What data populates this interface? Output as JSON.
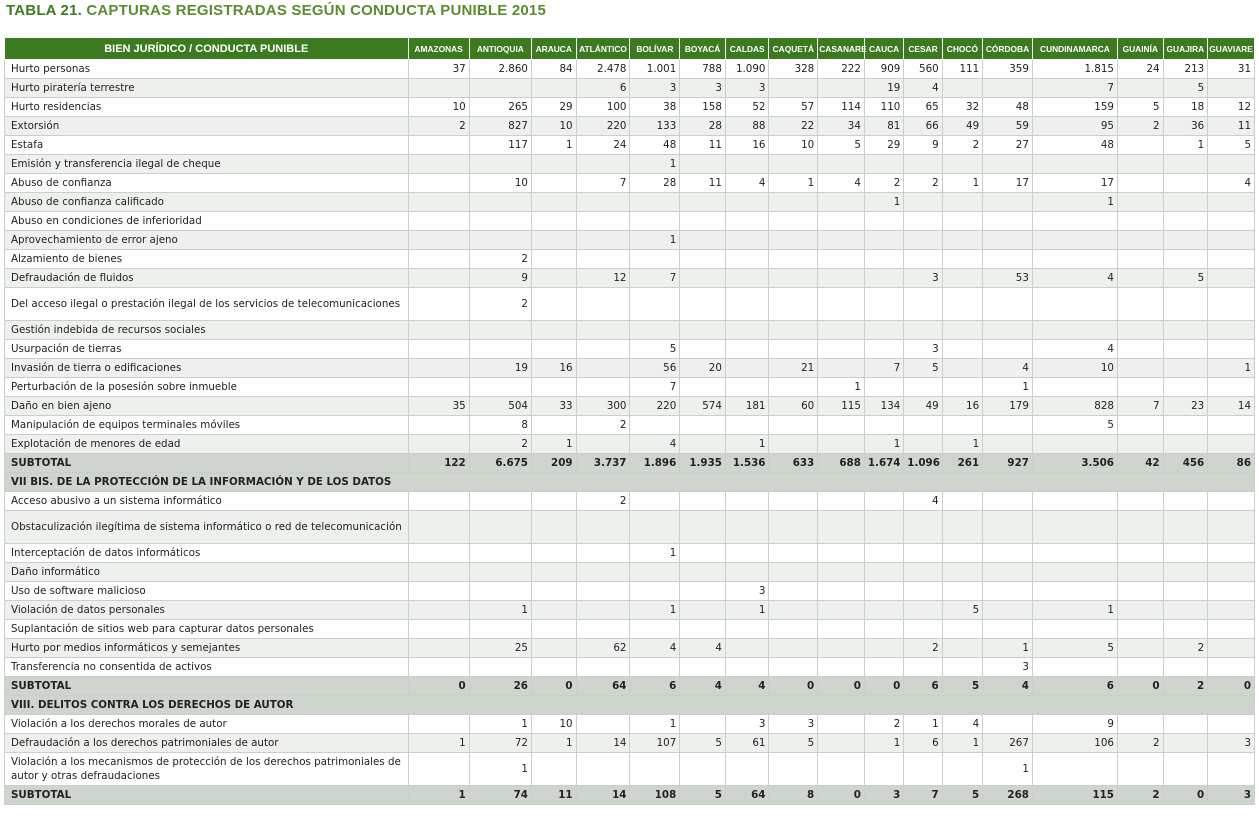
{
  "title": {
    "label": "TABLA 21.",
    "text": "CAPTURAS REGISTRADAS SEGÚN CONDUCTA PUNIBLE 2015"
  },
  "columns": [
    "BIEN JURÍDICO / CONDUCTA PUNIBLE",
    "AMAZONAS",
    "ANTIOQUIA",
    "ARAUCA",
    "ATLÁNTICO",
    "BOLÍVAR",
    "BOYACÁ",
    "CALDAS",
    "CAQUETÁ",
    "CASANARE",
    "CAUCA",
    "CESAR",
    "CHOCÓ",
    "CÓRDOBA",
    "CUNDINAMARCA",
    "GUAINÍA",
    "GUAJIRA",
    "GUAVIARE"
  ],
  "rows": [
    {
      "kind": "row",
      "label": "Hurto personas",
      "v": [
        "37",
        "2.860",
        "84",
        "2.478",
        "1.001",
        "788",
        "1.090",
        "328",
        "222",
        "909",
        "560",
        "111",
        "359",
        "1.815",
        "24",
        "213",
        "31"
      ]
    },
    {
      "kind": "row",
      "label": "Hurto piratería terrestre",
      "v": [
        "",
        "",
        "",
        "6",
        "3",
        "3",
        "3",
        "",
        "",
        "19",
        "4",
        "",
        "",
        "7",
        "",
        "5",
        ""
      ]
    },
    {
      "kind": "row",
      "label": "Hurto residencias",
      "v": [
        "10",
        "265",
        "29",
        "100",
        "38",
        "158",
        "52",
        "57",
        "114",
        "110",
        "65",
        "32",
        "48",
        "159",
        "5",
        "18",
        "12"
      ]
    },
    {
      "kind": "row",
      "label": "Extorsión",
      "v": [
        "2",
        "827",
        "10",
        "220",
        "133",
        "28",
        "88",
        "22",
        "34",
        "81",
        "66",
        "49",
        "59",
        "95",
        "2",
        "36",
        "11"
      ]
    },
    {
      "kind": "row",
      "label": "Estafa",
      "v": [
        "",
        "117",
        "1",
        "24",
        "48",
        "11",
        "16",
        "10",
        "5",
        "29",
        "9",
        "2",
        "27",
        "48",
        "",
        "1",
        "5"
      ]
    },
    {
      "kind": "row",
      "label": "Emisión y transferencia ilegal de cheque",
      "v": [
        "",
        "",
        "",
        "",
        "1",
        "",
        "",
        "",
        "",
        "",
        "",
        "",
        "",
        "",
        "",
        "",
        ""
      ]
    },
    {
      "kind": "row",
      "label": "Abuso de confianza",
      "v": [
        "",
        "10",
        "",
        "7",
        "28",
        "11",
        "4",
        "1",
        "4",
        "2",
        "2",
        "1",
        "17",
        "17",
        "",
        "",
        "4"
      ]
    },
    {
      "kind": "row",
      "label": "Abuso de confianza calificado",
      "v": [
        "",
        "",
        "",
        "",
        "",
        "",
        "",
        "",
        "",
        "1",
        "",
        "",
        "",
        "1",
        "",
        "",
        ""
      ]
    },
    {
      "kind": "row",
      "label": "Abuso en condiciones de inferioridad",
      "v": [
        "",
        "",
        "",
        "",
        "",
        "",
        "",
        "",
        "",
        "",
        "",
        "",
        "",
        "",
        "",
        "",
        ""
      ]
    },
    {
      "kind": "row",
      "label": "Aprovechamiento de error ajeno",
      "v": [
        "",
        "",
        "",
        "",
        "1",
        "",
        "",
        "",
        "",
        "",
        "",
        "",
        "",
        "",
        "",
        "",
        ""
      ]
    },
    {
      "kind": "row",
      "label": "Alzamiento de bienes",
      "v": [
        "",
        "2",
        "",
        "",
        "",
        "",
        "",
        "",
        "",
        "",
        "",
        "",
        "",
        "",
        "",
        "",
        ""
      ]
    },
    {
      "kind": "row",
      "label": "Defraudación de fluidos",
      "v": [
        "",
        "9",
        "",
        "12",
        "7",
        "",
        "",
        "",
        "",
        "",
        "3",
        "",
        "53",
        "4",
        "",
        "5",
        ""
      ]
    },
    {
      "kind": "row2",
      "label": "Del acceso ilegal o prestación ilegal de los servicios de telecomunicaciones",
      "v": [
        "",
        "2",
        "",
        "",
        "",
        "",
        "",
        "",
        "",
        "",
        "",
        "",
        "",
        "",
        "",
        "",
        ""
      ]
    },
    {
      "kind": "row",
      "label": "Gestión indebida de recursos sociales",
      "v": [
        "",
        "",
        "",
        "",
        "",
        "",
        "",
        "",
        "",
        "",
        "",
        "",
        "",
        "",
        "",
        "",
        ""
      ]
    },
    {
      "kind": "row",
      "label": "Usurpación de tierras",
      "v": [
        "",
        "",
        "",
        "",
        "5",
        "",
        "",
        "",
        "",
        "",
        "3",
        "",
        "",
        "4",
        "",
        "",
        ""
      ]
    },
    {
      "kind": "row",
      "label": "Invasión de tierra o edificaciones",
      "v": [
        "",
        "19",
        "16",
        "",
        "56",
        "20",
        "",
        "21",
        "",
        "7",
        "5",
        "",
        "4",
        "10",
        "",
        "",
        "1"
      ]
    },
    {
      "kind": "row",
      "label": "Perturbación de la posesión sobre inmueble",
      "v": [
        "",
        "",
        "",
        "",
        "7",
        "",
        "",
        "",
        "1",
        "",
        "",
        "",
        "1",
        "",
        "",
        "",
        ""
      ]
    },
    {
      "kind": "row",
      "label": "Daño en bien ajeno",
      "v": [
        "35",
        "504",
        "33",
        "300",
        "220",
        "574",
        "181",
        "60",
        "115",
        "134",
        "49",
        "16",
        "179",
        "828",
        "7",
        "23",
        "14"
      ]
    },
    {
      "kind": "row",
      "label": "Manipulación de equipos terminales móviles",
      "v": [
        "",
        "8",
        "",
        "2",
        "",
        "",
        "",
        "",
        "",
        "",
        "",
        "",
        "",
        "5",
        "",
        "",
        ""
      ]
    },
    {
      "kind": "row",
      "label": "Explotación de menores de edad",
      "v": [
        "",
        "2",
        "1",
        "",
        "4",
        "",
        "1",
        "",
        "",
        "1",
        "",
        "1",
        "",
        "",
        "",
        "",
        ""
      ]
    },
    {
      "kind": "sub",
      "label": "SUBTOTAL",
      "v": [
        "122",
        "6.675",
        "209",
        "3.737",
        "1.896",
        "1.935",
        "1.536",
        "633",
        "688",
        "1.674",
        "1.096",
        "261",
        "927",
        "3.506",
        "42",
        "456",
        "86"
      ]
    },
    {
      "kind": "sec",
      "label": "VII BIS. DE LA PROTECCIÓN DE LA INFORMACIÓN Y DE LOS DATOS"
    },
    {
      "kind": "row",
      "label": "Acceso abusivo a un sistema informático",
      "v": [
        "",
        "",
        "",
        "2",
        "",
        "",
        "",
        "",
        "",
        "",
        "4",
        "",
        "",
        "",
        "",
        "",
        ""
      ]
    },
    {
      "kind": "row2",
      "label": "Obstaculización ilegítima de sistema informático o red de telecomunicación",
      "v": [
        "",
        "",
        "",
        "",
        "",
        "",
        "",
        "",
        "",
        "",
        "",
        "",
        "",
        "",
        "",
        "",
        ""
      ]
    },
    {
      "kind": "row",
      "label": "Interceptación de datos informáticos",
      "v": [
        "",
        "",
        "",
        "",
        "1",
        "",
        "",
        "",
        "",
        "",
        "",
        "",
        "",
        "",
        "",
        "",
        ""
      ]
    },
    {
      "kind": "row",
      "label": "Daño informático",
      "v": [
        "",
        "",
        "",
        "",
        "",
        "",
        "",
        "",
        "",
        "",
        "",
        "",
        "",
        "",
        "",
        "",
        ""
      ]
    },
    {
      "kind": "row",
      "label": "Uso de software malicioso",
      "v": [
        "",
        "",
        "",
        "",
        "",
        "",
        "3",
        "",
        "",
        "",
        "",
        "",
        "",
        "",
        "",
        "",
        ""
      ]
    },
    {
      "kind": "row",
      "label": "Violación de datos personales",
      "v": [
        "",
        "1",
        "",
        "",
        "1",
        "",
        "1",
        "",
        "",
        "",
        "",
        "5",
        "",
        "1",
        "",
        "",
        ""
      ]
    },
    {
      "kind": "row",
      "label": "Suplantación de sitios web para capturar datos personales",
      "v": [
        "",
        "",
        "",
        "",
        "",
        "",
        "",
        "",
        "",
        "",
        "",
        "",
        "",
        "",
        "",
        "",
        ""
      ]
    },
    {
      "kind": "row",
      "label": "Hurto por medios informáticos y semejantes",
      "v": [
        "",
        "25",
        "",
        "62",
        "4",
        "4",
        "",
        "",
        "",
        "",
        "2",
        "",
        "1",
        "5",
        "",
        "2",
        ""
      ]
    },
    {
      "kind": "row",
      "label": "Transferencia no consentida de activos",
      "v": [
        "",
        "",
        "",
        "",
        "",
        "",
        "",
        "",
        "",
        "",
        "",
        "",
        "3",
        "",
        "",
        "",
        ""
      ]
    },
    {
      "kind": "sub",
      "label": "SUBTOTAL",
      "v": [
        "0",
        "26",
        "0",
        "64",
        "6",
        "4",
        "4",
        "0",
        "0",
        "0",
        "6",
        "5",
        "4",
        "6",
        "0",
        "2",
        "0"
      ]
    },
    {
      "kind": "sec",
      "label": "VIII. DELITOS CONTRA LOS DERECHOS DE AUTOR"
    },
    {
      "kind": "row",
      "label": "Violación a los derechos morales de autor",
      "v": [
        "",
        "1",
        "10",
        "",
        "1",
        "",
        "3",
        "3",
        "",
        "2",
        "1",
        "4",
        "",
        "9",
        "",
        "",
        ""
      ]
    },
    {
      "kind": "row",
      "label": "Defraudación a los derechos patrimoniales de autor",
      "v": [
        "1",
        "72",
        "1",
        "14",
        "107",
        "5",
        "61",
        "5",
        "",
        "1",
        "6",
        "1",
        "267",
        "106",
        "2",
        "",
        "3"
      ]
    },
    {
      "kind": "row2",
      "label": "Violación a los mecanismos de protección de los derechos patrimoniales de autor y otras defraudaciones",
      "v": [
        "",
        "1",
        "",
        "",
        "",
        "",
        "",
        "",
        "",
        "",
        "",
        "",
        "1",
        "",
        "",
        "",
        ""
      ]
    },
    {
      "kind": "sub",
      "label": "SUBTOTAL",
      "v": [
        "1",
        "74",
        "11",
        "14",
        "108",
        "5",
        "64",
        "8",
        "0",
        "3",
        "7",
        "5",
        "268",
        "115",
        "2",
        "0",
        "3"
      ]
    }
  ]
}
